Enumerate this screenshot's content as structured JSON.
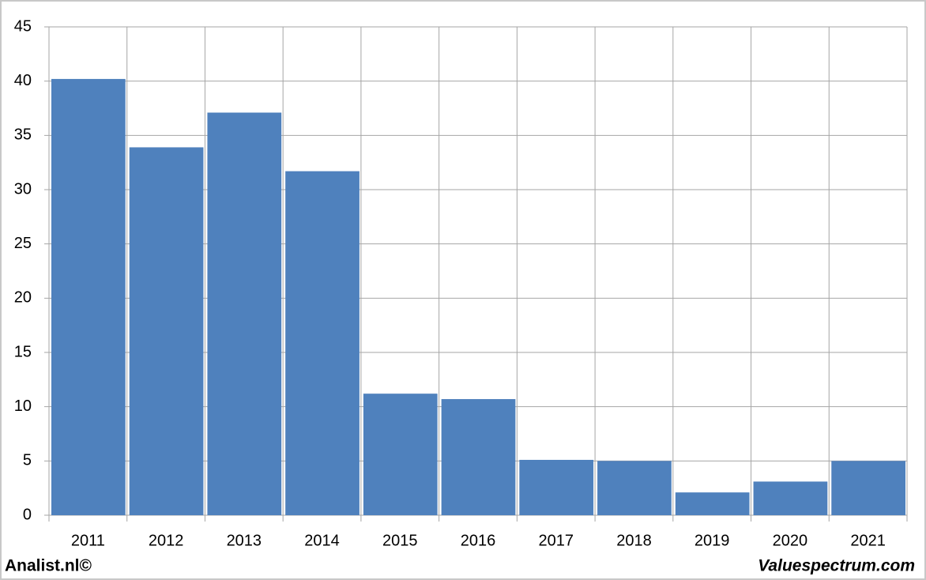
{
  "chart_data": {
    "type": "bar",
    "categories": [
      "2011",
      "2012",
      "2013",
      "2014",
      "2015",
      "2016",
      "2017",
      "2018",
      "2019",
      "2020",
      "2021"
    ],
    "values": [
      40.2,
      33.9,
      37.1,
      31.7,
      11.2,
      10.7,
      5.1,
      5.0,
      2.1,
      3.1,
      5.0
    ],
    "color": "#4f81bd",
    "ylim": [
      0,
      45
    ],
    "yticks": [
      0,
      5,
      10,
      15,
      20,
      25,
      30,
      35,
      40,
      45
    ],
    "grid": true
  },
  "footer": {
    "left": "Analist.nl©",
    "right": "Valuespectrum.com"
  }
}
